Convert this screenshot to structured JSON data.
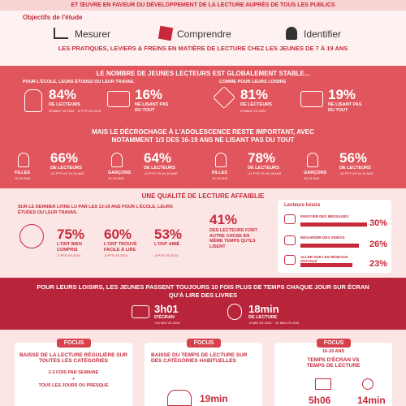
{
  "header": {
    "banner": "ET ŒUVRE EN FAVEUR DU DÉVELOPPEMENT DE LA LECTURE AUPRÈS DE TOUS LES PUBLICS",
    "objectives_title": "Objectifs de l'étude",
    "objectives": [
      "Mesurer",
      "Comprendre",
      "Identifier"
    ],
    "subtitle": "LES PRATIQUES, LEVIERS & FREINS EN MATIÈRE DE LECTURE CHEZ LES JEUNES DE 7 À 19 ANS"
  },
  "readers": {
    "title": "LE NOMBRE DE JEUNES LECTEURS EST GLOBALEMENT STABLE...",
    "groups": [
      {
        "label": "POUR L'ÉCOLE, LEURS ÉTUDES OU LEUR TRAVAIL",
        "readers_value": "84%",
        "readers_label": "DE LECTEURS",
        "readers_note": "STABLE VS 2024 · -6 PTS VS 2016",
        "non_value": "16%",
        "non_label": "NE LISANT PAS DU TOUT"
      },
      {
        "label": "COMME POUR LEURS LOISIRS",
        "readers_value": "81%",
        "readers_label": "DE LECTEURS",
        "readers_note": "STABLE VS 2024",
        "non_value": "19%",
        "non_label": "NE LISANT PAS DU TOUT"
      }
    ],
    "dropout_title": "MAIS LE DÉCROCHAGE À L'ADOLESCENCE RESTE IMPORTANT, AVEC NOTAMMENT 1/3 DES 16-19 ANS NE LISANT PAS DU TOUT",
    "dropout": [
      {
        "gender": "FILLES",
        "age": "16-19 ANS",
        "value": "66%",
        "label": "DE LECTEURS",
        "note": "-13 PTS VS 10-15 ANS"
      },
      {
        "gender": "GARÇONS",
        "age": "16-19 ANS",
        "value": "64%",
        "label": "DE LECTEURS",
        "note": "-13 PTS VS 10-15 ANS"
      },
      {
        "gender": "FILLES",
        "age": "16-19 ANS",
        "value": "78%",
        "label": "DE LECTEURS",
        "note": "-11 PTS VS 10-15 ANS"
      },
      {
        "gender": "GARÇONS",
        "age": "16-19 ANS",
        "value": "56%",
        "label": "DE LECTEURS",
        "note": "-22 PTS VS 10-15 ANS"
      }
    ]
  },
  "quality": {
    "title": "UNE QUALITÉ DE LECTURE AFFAIBLIE",
    "intro": "SUR LE DERNIER LIVRE LU PAR LES 13-19 ANS POUR L'ÉCOLE, LEURS ÉTUDES OU LEUR TRAVAIL",
    "stats": [
      {
        "value": "75%",
        "label": "L'ONT BIEN COMPRIS",
        "note": "-5 PTS VS 2024"
      },
      {
        "value": "60%",
        "label": "L'ONT TROUVÉ FACILE À LIRE",
        "note": "-5 PTS VS 2024"
      },
      {
        "value": "53%",
        "label": "L'ONT AIMÉ",
        "note": "-5 PTS VS 2024"
      }
    ],
    "multitask_value": "41%",
    "multitask_label": "DES LECTEURS FONT AUTRE CHOSE EN MÊME TEMPS QU'ILS LISENT",
    "panel_title": "Lecteurs loisirs",
    "activities": [
      {
        "label": "ENVOYER DES MESSAGES",
        "value": "30%"
      },
      {
        "label": "REGARDER DES VIDÉOS",
        "value": "26%"
      },
      {
        "label": "ALLER SUR LES RÉSEAUX SOCIAUX",
        "value": "23%"
      }
    ]
  },
  "screen": {
    "title": "POUR LEURS LOISIRS, LES JEUNES PASSENT TOUJOURS 10 FOIS PLUS DE TEMPS CHAQUE JOUR SUR ÉCRAN QU'À LIRE DES LIVRES",
    "screen_value": "3h01",
    "screen_label": "D'ÉCRAN",
    "screen_note": "+10 MIN VS 2024",
    "reading_value": "18min",
    "reading_label": "DE LECTURE",
    "reading_note": "-4 MIN VS 2024 · -11 MIN VS 2016"
  },
  "focus": [
    {
      "tab": "FOCUS",
      "title": "BAISSE DE LA LECTURE RÉGULIÈRE SUR TOUTES LES CATÉGORIES",
      "line1": "2-3 FOIS PAR SEMAINE",
      "line2": "+",
      "line3": "TOUS LES JOURS OU PRESQUE"
    },
    {
      "tab": "FOCUS",
      "title": "BAISSE DU TEMPS DE LECTURE SUR DES CATÉGORIES HABITUELLES",
      "value": "19min"
    },
    {
      "tab": "FOCUS",
      "age": "16-19 ANS",
      "title": "TEMPS D'ÉCRAN VS TEMPS DE LECTURE",
      "value": "5h06",
      "value2": "14min"
    }
  ]
}
